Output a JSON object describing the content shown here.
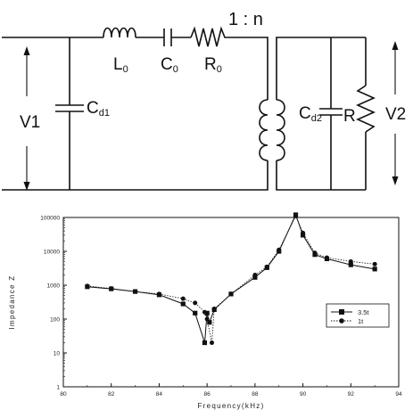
{
  "circuit": {
    "ratio_label": "1 : n",
    "v1_label": "V1",
    "v2_label": "V2",
    "cd1_label": "C",
    "cd1_sub": "d1",
    "l0_label": "L",
    "l0_sub": "0",
    "c0_label": "C",
    "c0_sub": "0",
    "r0_label": "R",
    "r0_sub": "0",
    "cd2_label": "C",
    "cd2_sub": "d2",
    "r_label": "R"
  },
  "chart_data": {
    "type": "line",
    "title": "",
    "xlabel": "Frequency(kHz)",
    "ylabel": "Impedance Z",
    "xlim": [
      80,
      94
    ],
    "ylim": [
      1,
      100000
    ],
    "yscale": "log",
    "x_ticks": [
      80,
      82,
      84,
      86,
      88,
      90,
      92,
      94
    ],
    "x_tick_labels": [
      "80",
      "82",
      "84",
      "86",
      "88",
      "90",
      "92",
      "94"
    ],
    "y_ticks": [
      1,
      10,
      100,
      1000,
      10000,
      100000
    ],
    "y_tick_labels": [
      "1",
      "10",
      "100",
      "1000",
      "10000",
      "100000"
    ],
    "legend_position": "center-right",
    "grid": false,
    "series": [
      {
        "name": "3.5t",
        "marker": "square",
        "line": "solid",
        "points": [
          [
            81,
            900
          ],
          [
            82,
            780
          ],
          [
            83,
            650
          ],
          [
            84,
            520
          ],
          [
            85,
            280
          ],
          [
            85.5,
            150
          ],
          [
            85.9,
            20
          ],
          [
            86,
            150
          ],
          [
            86.1,
            80
          ],
          [
            86.3,
            190
          ],
          [
            87,
            550
          ],
          [
            88,
            1700
          ],
          [
            88.5,
            3300
          ],
          [
            89,
            10000
          ],
          [
            89.7,
            120000
          ],
          [
            90,
            30000
          ],
          [
            90.5,
            8000
          ],
          [
            91,
            6000
          ],
          [
            92,
            4000
          ],
          [
            93,
            3000
          ]
        ]
      },
      {
        "name": "1t",
        "marker": "circle",
        "line": "dotted",
        "points": [
          [
            81,
            950
          ],
          [
            82,
            800
          ],
          [
            83,
            650
          ],
          [
            84,
            550
          ],
          [
            85,
            400
          ],
          [
            85.5,
            300
          ],
          [
            85.9,
            160
          ],
          [
            86,
            100
          ],
          [
            86.2,
            20
          ],
          [
            86.3,
            200
          ],
          [
            87,
            550
          ],
          [
            88,
            2000
          ],
          [
            88.5,
            3500
          ],
          [
            89,
            11000
          ],
          [
            89.7,
            110000
          ],
          [
            90,
            35000
          ],
          [
            90.5,
            9000
          ],
          [
            91,
            6500
          ],
          [
            92,
            5000
          ],
          [
            93,
            4200
          ]
        ]
      }
    ]
  }
}
